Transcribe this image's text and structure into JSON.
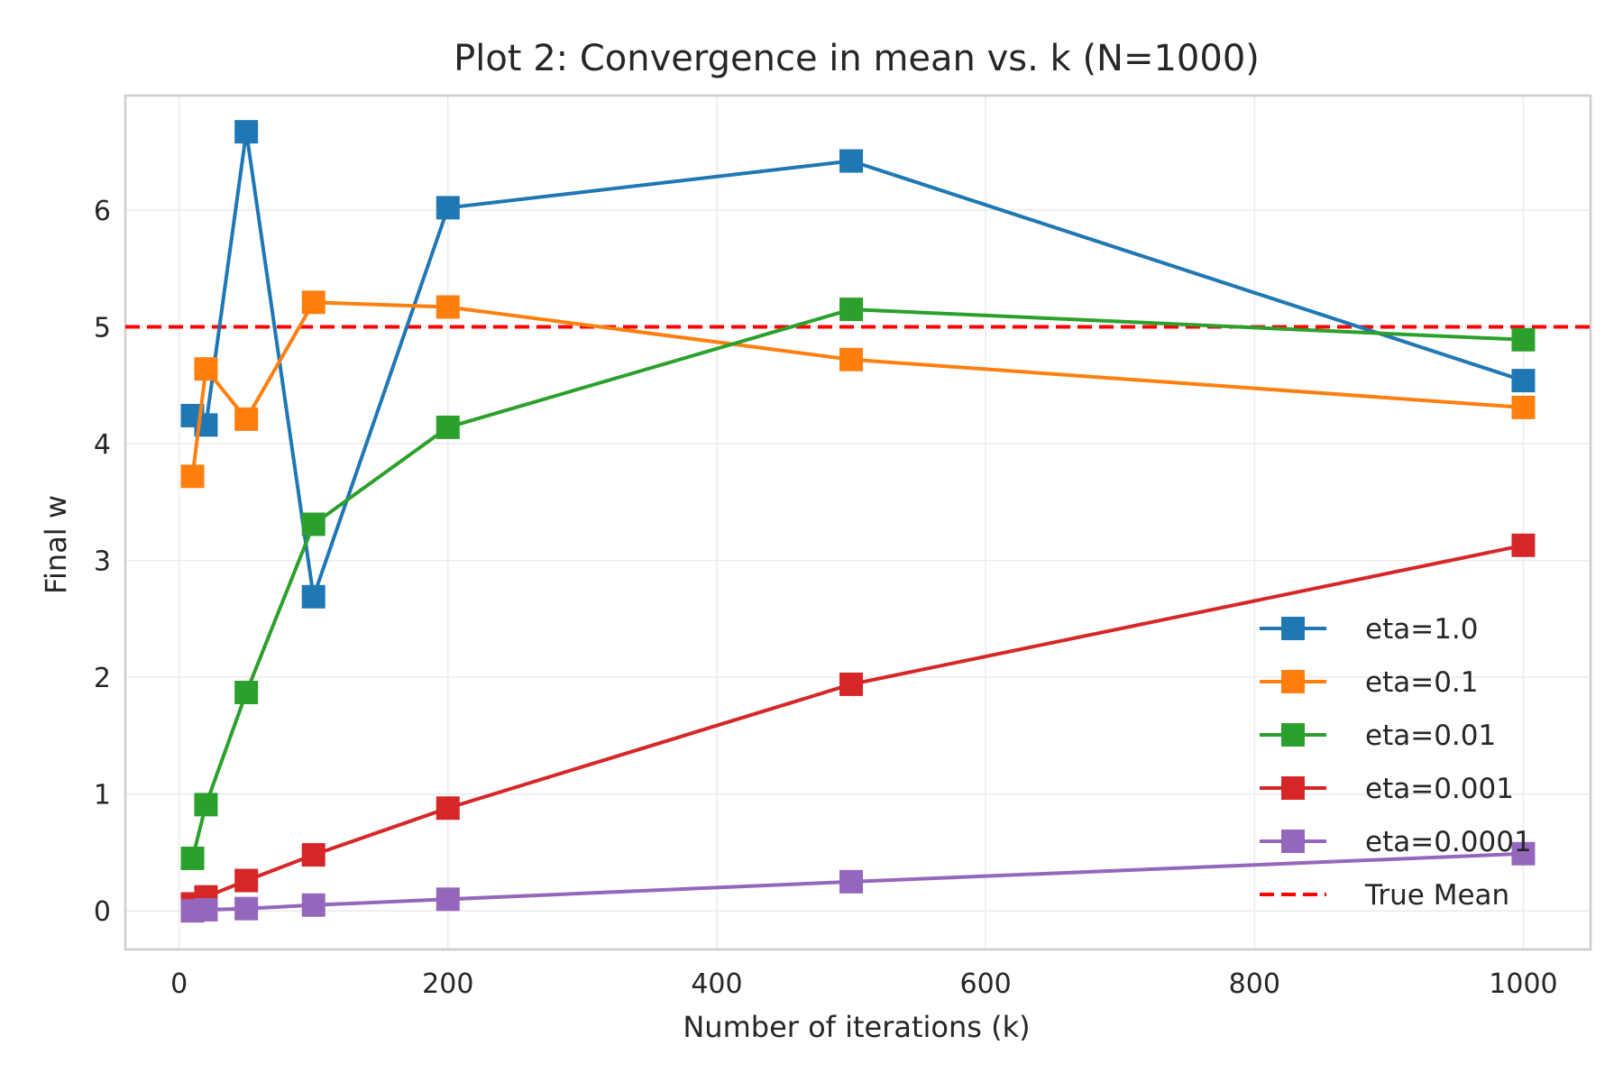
{
  "chart_data": {
    "type": "line",
    "title": "Plot 2: Convergence in mean vs. k (N=1000)",
    "xlabel": "Number of iterations (k)",
    "ylabel": "Final w",
    "xlim": [
      -40,
      1050
    ],
    "ylim": [
      -0.33,
      6.98
    ],
    "xticks": [
      0,
      200,
      400,
      600,
      800,
      1000
    ],
    "yticks": [
      0,
      1,
      2,
      3,
      4,
      5,
      6
    ],
    "grid": true,
    "legend_position": "lower-right",
    "x": [
      10,
      20,
      50,
      100,
      200,
      500,
      1000
    ],
    "series": [
      {
        "name": "eta=1.0",
        "color": "#1f77b4",
        "marker": "square",
        "values": [
          4.24,
          4.16,
          6.67,
          2.69,
          6.02,
          6.42,
          4.54
        ]
      },
      {
        "name": "eta=0.1",
        "color": "#ff7f0e",
        "marker": "square",
        "values": [
          3.72,
          4.64,
          4.21,
          5.21,
          5.17,
          4.72,
          4.31
        ]
      },
      {
        "name": "eta=0.01",
        "color": "#2ca02c",
        "marker": "square",
        "values": [
          0.45,
          0.91,
          1.87,
          3.31,
          4.14,
          5.15,
          4.89
        ]
      },
      {
        "name": "eta=0.001",
        "color": "#d62728",
        "marker": "square",
        "values": [
          0.06,
          0.12,
          0.26,
          0.48,
          0.88,
          1.94,
          3.13
        ]
      },
      {
        "name": "eta=0.0001",
        "color": "#9467bd",
        "marker": "square",
        "values": [
          0.0,
          0.01,
          0.02,
          0.05,
          0.1,
          0.25,
          0.49
        ]
      }
    ],
    "reference_line": {
      "name": "True Mean",
      "y": 5,
      "color": "#ff0000",
      "style": "dashed"
    }
  }
}
